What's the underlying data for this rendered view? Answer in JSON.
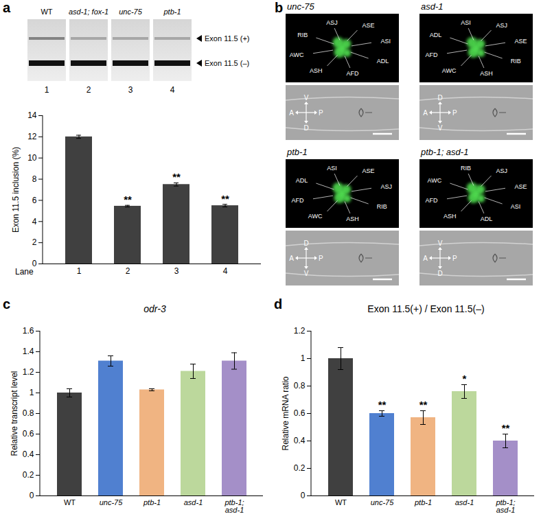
{
  "chart_data": [
    {
      "panel": "a",
      "type": "bar",
      "categories": [
        "1",
        "2",
        "3",
        "4"
      ],
      "values": [
        12.0,
        5.45,
        7.5,
        5.5
      ],
      "errors": [
        0.15,
        0.08,
        0.15,
        0.12
      ],
      "significance": [
        null,
        "**",
        "**",
        "**"
      ],
      "color": "#404040",
      "xlabel": "Lane",
      "ylabel": "Exon 11.5 inclusion (%)",
      "ylim": [
        0,
        14
      ],
      "yticks": [
        0,
        2,
        4,
        6,
        8,
        10,
        12,
        14
      ]
    },
    {
      "panel": "c",
      "type": "bar",
      "title": "odr-3",
      "categories": [
        "WT",
        "unc-75",
        "ptb-1",
        "asd-1",
        "ptb-1; asd-1"
      ],
      "values": [
        1.0,
        1.31,
        1.03,
        1.21,
        1.31
      ],
      "errors": [
        0.04,
        0.05,
        0.01,
        0.07,
        0.08
      ],
      "colors": [
        "#404040",
        "#5080d0",
        "#f0b482",
        "#bcd89c",
        "#a48fc8"
      ],
      "ylabel": "Relative transcript level",
      "ylim": [
        0,
        1.6
      ],
      "yticks": [
        0,
        0.2,
        0.4,
        0.6,
        0.8,
        1,
        1.2,
        1.4,
        1.6
      ]
    },
    {
      "panel": "d",
      "type": "bar",
      "title": "Exon 11.5(+) / Exon 11.5(–)",
      "categories": [
        "WT",
        "unc-75",
        "ptb-1",
        "asd-1",
        "ptb-1; asd-1"
      ],
      "values": [
        1.0,
        0.6,
        0.57,
        0.76,
        0.4
      ],
      "errors": [
        0.08,
        0.02,
        0.05,
        0.05,
        0.05
      ],
      "significance": [
        null,
        "**",
        "**",
        "*",
        "**"
      ],
      "colors": [
        "#404040",
        "#5080d0",
        "#f0b482",
        "#bcd89c",
        "#a48fc8"
      ],
      "ylabel": "Relative mRNA ratio",
      "ylim": [
        0,
        1.2
      ],
      "yticks": [
        0,
        0.2,
        0.4,
        0.6,
        0.8,
        1,
        1.2
      ]
    }
  ],
  "gel": {
    "lanes": [
      "WT",
      "asd-1; fox-1",
      "unc-75",
      "ptb-1"
    ],
    "lane_numbers": [
      "1",
      "2",
      "3",
      "4"
    ],
    "bands": [
      "Exon 11.5 (+)",
      "Exon 11.5 (–)"
    ]
  },
  "imaging": {
    "panel": "b",
    "images": [
      {
        "title": "unc-75",
        "neurons": [
          "RIB",
          "ASJ",
          "ASE",
          "ASI",
          "ADL",
          "AFD",
          "ASH",
          "AWC"
        ],
        "axes": {
          "left": "A",
          "right": "P",
          "top": "V",
          "bottom": "D"
        }
      },
      {
        "title": "asd-1",
        "neurons": [
          "ADL",
          "ASI",
          "ASJ",
          "ASE",
          "RIB",
          "ASH",
          "AWC",
          "AFD"
        ],
        "axes": {
          "left": "A",
          "right": "P",
          "top": "D",
          "bottom": "V"
        }
      },
      {
        "title": "ptb-1",
        "neurons": [
          "ADL",
          "ASI",
          "ASE",
          "ASJ",
          "RIB",
          "ASH",
          "AWC",
          "AFD"
        ],
        "axes": {
          "left": "A",
          "right": "P",
          "top": "D",
          "bottom": "V"
        }
      },
      {
        "title": "ptb-1; asd-1",
        "neurons": [
          "AWC",
          "RIB",
          "ASJ",
          "ASE",
          "ASI",
          "ADL",
          "ASH",
          "AFD"
        ],
        "axes": {
          "left": "A",
          "right": "P",
          "top": "V",
          "bottom": "D"
        }
      }
    ]
  }
}
